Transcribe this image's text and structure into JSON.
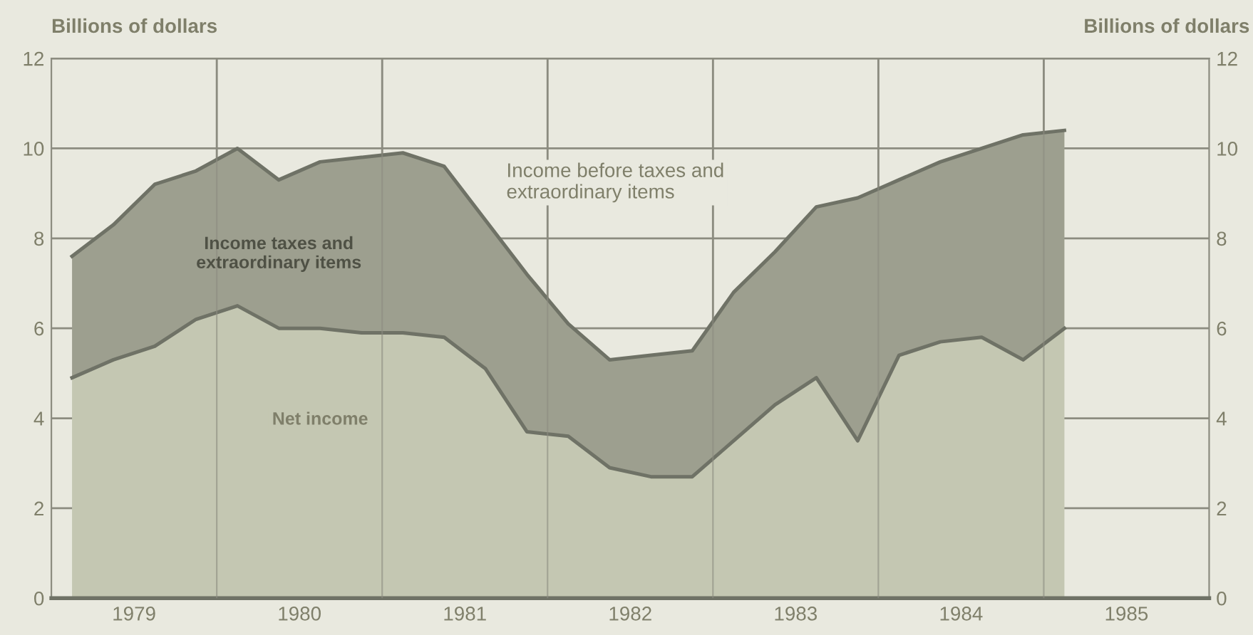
{
  "chart_data": {
    "type": "area",
    "stacked": true,
    "ylabel": "Billions of dollars",
    "y2label": "Billions of dollars",
    "x": [
      1979.125,
      1979.375,
      1979.625,
      1979.875,
      1980.125,
      1980.375,
      1980.625,
      1980.875,
      1981.125,
      1981.375,
      1981.625,
      1981.875,
      1982.125,
      1982.375,
      1982.625,
      1982.875,
      1983.125,
      1983.375,
      1983.625,
      1983.875,
      1984.125,
      1984.375,
      1984.625,
      1984.875,
      1985.125
    ],
    "series": [
      {
        "name": "Net income",
        "color": "#c4c7b2",
        "values": [
          4.9,
          5.3,
          5.6,
          6.2,
          6.5,
          6.0,
          6.0,
          5.9,
          5.9,
          5.8,
          5.1,
          3.7,
          3.6,
          2.9,
          2.7,
          2.7,
          3.5,
          4.3,
          4.9,
          3.5,
          5.4,
          5.7,
          5.8,
          5.3,
          6.0
        ]
      },
      {
        "name": "Income taxes and\nextraordinary items",
        "color": "#9d9f8f",
        "values": [
          2.7,
          3.0,
          3.6,
          3.3,
          3.5,
          3.3,
          3.7,
          3.9,
          4.0,
          3.8,
          3.3,
          3.5,
          2.5,
          2.4,
          2.7,
          2.8,
          3.3,
          3.4,
          3.8,
          5.4,
          3.9,
          4.0,
          4.2,
          5.0,
          4.4
        ]
      }
    ],
    "annotations": [
      "Income before taxes and\nextraordinary items"
    ],
    "xlim": [
      1979,
      1986
    ],
    "xticks": [
      {
        "value": 1979.5,
        "label": "1979"
      },
      {
        "value": 1980,
        "label": null
      },
      {
        "value": 1980.5,
        "label": "1980"
      },
      {
        "value": 1981,
        "label": null
      },
      {
        "value": 1981.5,
        "label": "1981"
      },
      {
        "value": 1982,
        "label": null
      },
      {
        "value": 1982.5,
        "label": "1982"
      },
      {
        "value": 1983,
        "label": null
      },
      {
        "value": 1983.5,
        "label": "1983"
      },
      {
        "value": 1984,
        "label": null
      },
      {
        "value": 1984.5,
        "label": "1984"
      },
      {
        "value": 1985,
        "label": null
      },
      {
        "value": 1985.5,
        "label": "1985"
      }
    ],
    "ylim": [
      0,
      12
    ],
    "yticks": [
      0,
      2,
      4,
      6,
      8,
      10,
      12
    ],
    "y2lim": [
      0,
      12
    ],
    "y2ticks": [
      0,
      2,
      4,
      6,
      8,
      10,
      12
    ],
    "grid": true,
    "legend": false
  }
}
